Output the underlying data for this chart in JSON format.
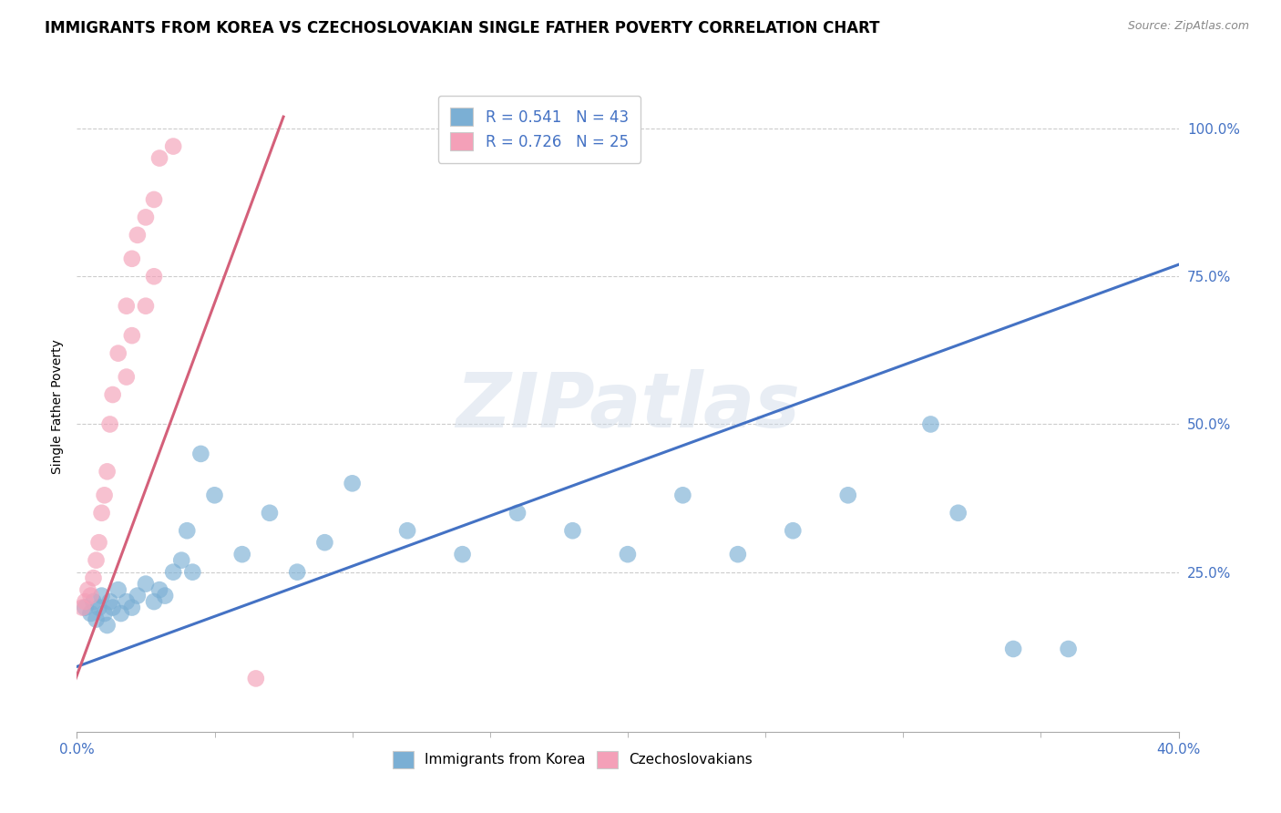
{
  "title": "IMMIGRANTS FROM KOREA VS CZECHOSLOVAKIAN SINGLE FATHER POVERTY CORRELATION CHART",
  "source": "Source: ZipAtlas.com",
  "ylabel": "Single Father Poverty",
  "xlim": [
    0.0,
    0.4
  ],
  "ylim": [
    -0.02,
    1.08
  ],
  "xtick_vals": [
    0.0,
    0.4
  ],
  "xtick_labels": [
    "0.0%",
    "40.0%"
  ],
  "ytick_vals": [
    1.0,
    0.75,
    0.5,
    0.25
  ],
  "ytick_labels": [
    "100.0%",
    "75.0%",
    "50.0%",
    "25.0%"
  ],
  "legend_entries": [
    {
      "label": "R = 0.541   N = 43"
    },
    {
      "label": "R = 0.726   N = 25"
    }
  ],
  "blue_scatter_x": [
    0.003,
    0.005,
    0.006,
    0.007,
    0.008,
    0.009,
    0.01,
    0.011,
    0.012,
    0.013,
    0.015,
    0.016,
    0.018,
    0.02,
    0.022,
    0.025,
    0.028,
    0.03,
    0.032,
    0.035,
    0.038,
    0.04,
    0.042,
    0.045,
    0.05,
    0.06,
    0.07,
    0.08,
    0.09,
    0.1,
    0.12,
    0.14,
    0.16,
    0.18,
    0.2,
    0.22,
    0.24,
    0.26,
    0.28,
    0.31,
    0.32,
    0.34,
    0.36
  ],
  "blue_scatter_y": [
    0.19,
    0.18,
    0.2,
    0.17,
    0.19,
    0.21,
    0.18,
    0.16,
    0.2,
    0.19,
    0.22,
    0.18,
    0.2,
    0.19,
    0.21,
    0.23,
    0.2,
    0.22,
    0.21,
    0.25,
    0.27,
    0.32,
    0.25,
    0.45,
    0.38,
    0.28,
    0.35,
    0.25,
    0.3,
    0.4,
    0.32,
    0.28,
    0.35,
    0.32,
    0.28,
    0.38,
    0.28,
    0.32,
    0.38,
    0.5,
    0.35,
    0.12,
    0.12
  ],
  "pink_scatter_x": [
    0.002,
    0.003,
    0.004,
    0.005,
    0.006,
    0.007,
    0.008,
    0.009,
    0.01,
    0.011,
    0.012,
    0.013,
    0.015,
    0.018,
    0.02,
    0.022,
    0.025,
    0.028,
    0.03,
    0.035,
    0.018,
    0.02,
    0.025,
    0.028,
    0.065
  ],
  "pink_scatter_y": [
    0.19,
    0.2,
    0.22,
    0.21,
    0.24,
    0.27,
    0.3,
    0.35,
    0.38,
    0.42,
    0.5,
    0.55,
    0.62,
    0.7,
    0.78,
    0.82,
    0.85,
    0.88,
    0.95,
    0.97,
    0.58,
    0.65,
    0.7,
    0.75,
    0.07
  ],
  "blue_line_x": [
    0.0,
    0.4
  ],
  "blue_line_y": [
    0.09,
    0.77
  ],
  "pink_line_x": [
    -0.002,
    0.075
  ],
  "pink_line_y": [
    0.05,
    1.02
  ],
  "scatter_color_blue": "#7bafd4",
  "scatter_color_pink": "#f4a0b8",
  "line_color_blue": "#4472c4",
  "line_color_pink": "#d4607a",
  "watermark_text": "ZIPatlas",
  "bottom_legend": [
    "Immigrants from Korea",
    "Czechoslovakians"
  ],
  "title_fontsize": 12,
  "axis_label_fontsize": 10,
  "tick_fontsize": 11,
  "source_fontsize": 9
}
